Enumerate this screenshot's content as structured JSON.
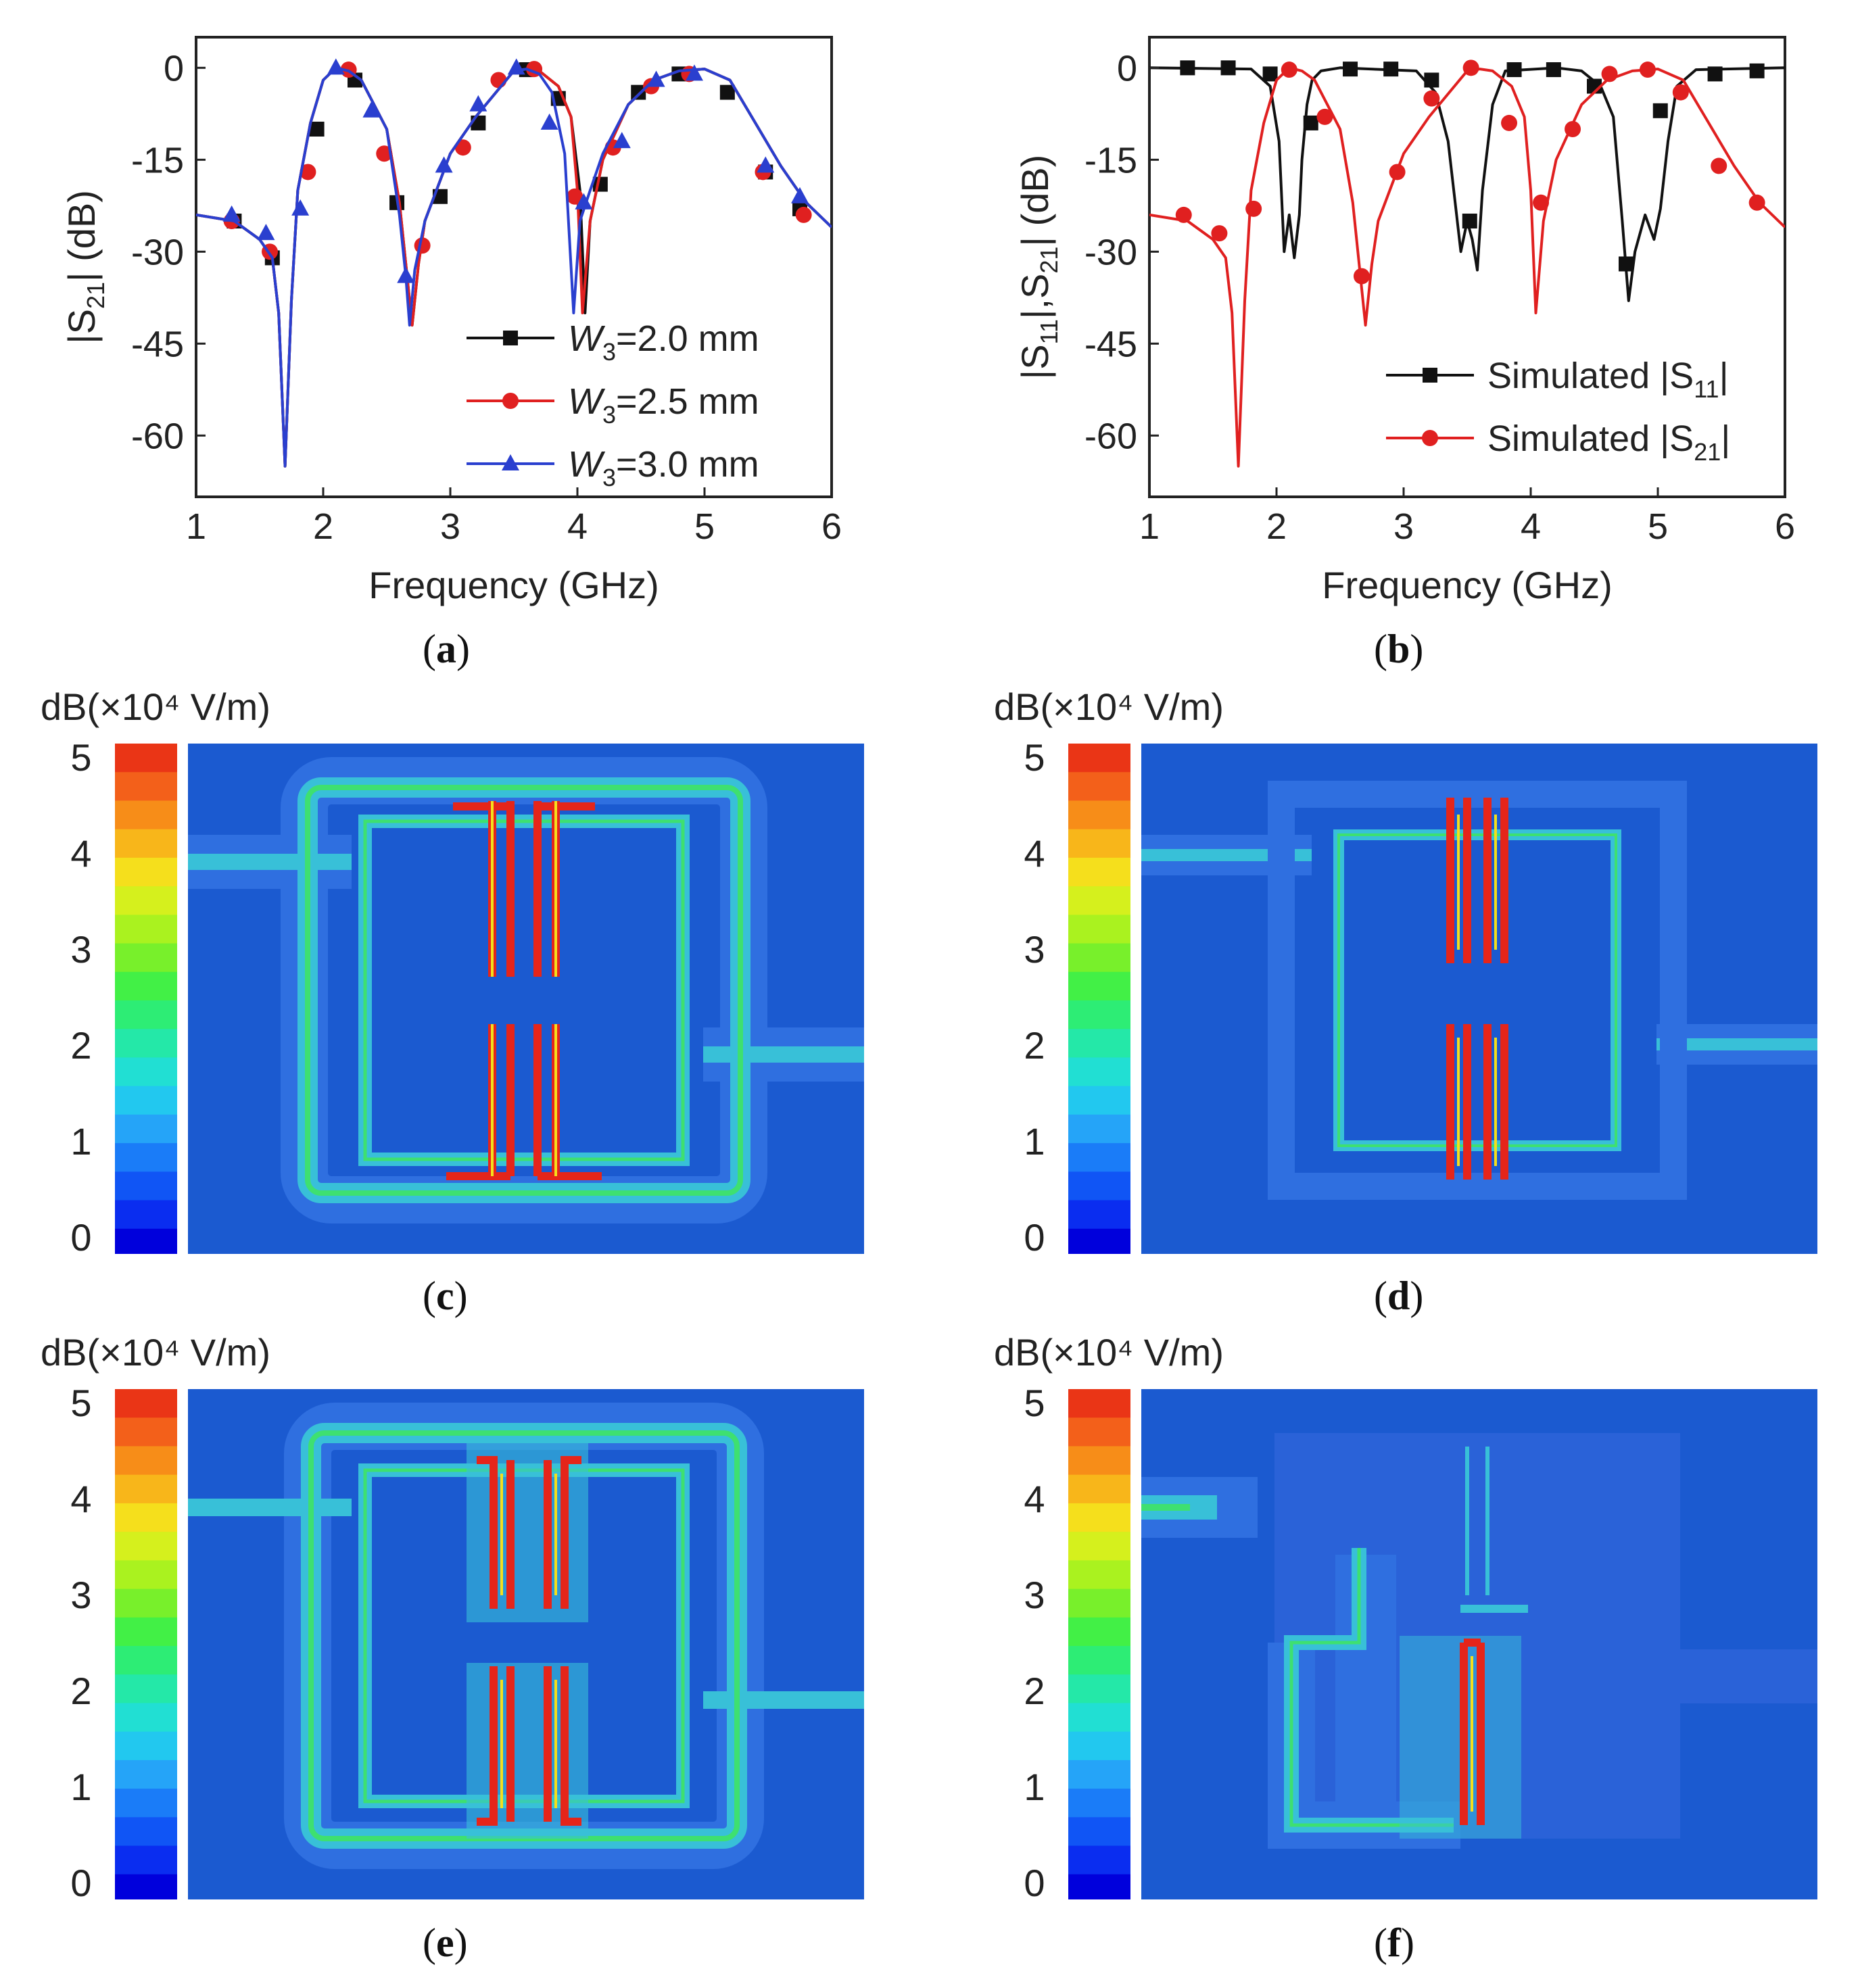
{
  "colors": {
    "black_series": "#111111",
    "red_series": "#e02020",
    "blue_series": "#2a3fcf",
    "field_bg": "#1b5ad0",
    "field_low": "#2f6fe0",
    "field_mid": "#38c0d8",
    "field_green": "#3ee070",
    "field_hot": "#e5251a"
  },
  "captions": {
    "a": "a",
    "b": "b",
    "c": "c",
    "d": "d",
    "e": "e",
    "f": "f"
  },
  "colorbar": {
    "title": "dB(×10⁴ V/m)",
    "ticks": [
      "0",
      "1",
      "2",
      "3",
      "4",
      "5"
    ],
    "colors": [
      "#0000dc",
      "#0a2df0",
      "#1055f5",
      "#1a7cf8",
      "#25a4f8",
      "#22c8ef",
      "#21dfd3",
      "#24e8a8",
      "#2ded75",
      "#42f046",
      "#78f02b",
      "#aaf21f",
      "#d5f01d",
      "#f5df1c",
      "#f8b61a",
      "#f78d18",
      "#f3601a",
      "#ea3516"
    ]
  },
  "chart_data": [
    {
      "id": "a",
      "type": "line",
      "xlabel": "Frequency (GHz)",
      "ylabel": "|S21| (dB)",
      "xlim": [
        1,
        6
      ],
      "ylim": [
        -70,
        5
      ],
      "xticks": [
        "1",
        "2",
        "3",
        "4",
        "5",
        "6"
      ],
      "yticks": [
        "0",
        "-15",
        "-30",
        "-45",
        "-60"
      ],
      "legend_position": "bottom-right",
      "series": [
        {
          "name": "W3=2.0 mm",
          "legend": [
            "W",
            "3",
            "=2.0 mm"
          ],
          "color": "#111111",
          "marker": "square",
          "x": [
            1.0,
            1.3,
            1.5,
            1.6,
            1.65,
            1.7,
            1.75,
            1.8,
            1.9,
            2.0,
            2.1,
            2.2,
            2.3,
            2.5,
            2.6,
            2.65,
            2.7,
            2.75,
            2.8,
            3.0,
            3.2,
            3.4,
            3.5,
            3.6,
            3.7,
            3.85,
            3.95,
            4.02,
            4.06,
            4.1,
            4.2,
            4.4,
            4.6,
            4.8,
            5.0,
            5.2,
            5.4,
            5.6,
            5.8,
            6.0
          ],
          "y": [
            -24,
            -25,
            -28,
            -31,
            -40,
            -65,
            -38,
            -20,
            -9,
            -2,
            0,
            -0.5,
            -2,
            -10,
            -22,
            -32,
            -42,
            -32,
            -25,
            -14,
            -8,
            -3,
            -0.5,
            -0.2,
            -0.5,
            -3,
            -8,
            -20,
            -40,
            -25,
            -15,
            -6,
            -2,
            -0.5,
            -0.2,
            -2,
            -9,
            -16,
            -22,
            -26
          ],
          "marker_x": [
            1.3,
            1.6,
            1.95,
            2.25,
            2.58,
            2.92,
            3.22,
            3.6,
            3.85,
            4.18,
            4.48,
            4.8,
            5.18,
            5.48,
            5.75
          ],
          "marker_y": [
            -25,
            -31,
            -10,
            -2,
            -22,
            -21,
            -9,
            -0.3,
            -5,
            -19,
            -4,
            -1,
            -4,
            -17,
            -23
          ]
        },
        {
          "name": "W3=2.5 mm",
          "legend": [
            "W",
            "3",
            "=2.5 mm"
          ],
          "color": "#e02020",
          "marker": "circle",
          "x": [
            1.0,
            1.3,
            1.5,
            1.6,
            1.65,
            1.7,
            1.75,
            1.8,
            1.9,
            2.0,
            2.1,
            2.2,
            2.3,
            2.5,
            2.6,
            2.65,
            2.7,
            2.75,
            2.8,
            3.0,
            3.2,
            3.4,
            3.5,
            3.6,
            3.7,
            3.85,
            3.95,
            4.0,
            4.04,
            4.1,
            4.2,
            4.4,
            4.6,
            4.8,
            5.0,
            5.2,
            5.4,
            5.6,
            5.8,
            6.0
          ],
          "y": [
            -24,
            -25,
            -28,
            -31,
            -40,
            -65,
            -38,
            -20,
            -9,
            -2,
            0,
            -0.5,
            -2,
            -10,
            -22,
            -32,
            -42,
            -32,
            -25,
            -14,
            -8,
            -3,
            -0.5,
            -0.2,
            -0.5,
            -3,
            -8,
            -20,
            -40,
            -25,
            -15,
            -6,
            -2,
            -0.5,
            -0.2,
            -2,
            -9,
            -16,
            -22,
            -26
          ],
          "marker_x": [
            1.28,
            1.58,
            1.88,
            2.2,
            2.48,
            2.78,
            3.1,
            3.38,
            3.66,
            3.98,
            4.28,
            4.58,
            4.88,
            5.46,
            5.78
          ],
          "marker_y": [
            -25,
            -30,
            -17,
            -0.3,
            -14,
            -29,
            -13,
            -2,
            -0.2,
            -21,
            -13,
            -3,
            -1,
            -17,
            -24
          ]
        },
        {
          "name": "W3=3.0 mm",
          "legend": [
            "W",
            "3",
            "=3.0 mm"
          ],
          "color": "#2a3fcf",
          "marker": "triangle",
          "x": [
            1.0,
            1.3,
            1.5,
            1.6,
            1.65,
            1.7,
            1.75,
            1.8,
            1.9,
            2.0,
            2.1,
            2.2,
            2.3,
            2.5,
            2.6,
            2.65,
            2.68,
            2.72,
            2.8,
            3.0,
            3.2,
            3.4,
            3.5,
            3.6,
            3.7,
            3.8,
            3.9,
            3.97,
            4.02,
            4.1,
            4.2,
            4.4,
            4.6,
            4.8,
            5.0,
            5.2,
            5.4,
            5.6,
            5.8,
            6.0
          ],
          "y": [
            -24,
            -25,
            -28,
            -31,
            -40,
            -65,
            -38,
            -20,
            -9,
            -2,
            0,
            -0.5,
            -2,
            -10,
            -24,
            -34,
            -42,
            -33,
            -25,
            -14,
            -8,
            -3,
            -0.5,
            -0.2,
            -1,
            -4,
            -14,
            -40,
            -25,
            -20,
            -14,
            -6,
            -2,
            -0.5,
            -0.2,
            -2,
            -9,
            -16,
            -22,
            -26
          ],
          "marker_x": [
            1.28,
            1.55,
            1.82,
            2.1,
            2.38,
            2.65,
            2.95,
            3.22,
            3.52,
            3.78,
            4.05,
            4.35,
            4.62,
            4.92,
            5.48,
            5.75
          ],
          "marker_y": [
            -24,
            -27,
            -23,
            0,
            -7,
            -34,
            -16,
            -6,
            0,
            -9,
            -22,
            -12,
            -2,
            -1,
            -16,
            -21
          ]
        }
      ]
    },
    {
      "id": "b",
      "type": "line",
      "xlabel": "Frequency (GHz)",
      "ylabel": "|S11|,|S21| (dB)",
      "xlim": [
        1,
        6
      ],
      "ylim": [
        -70,
        5
      ],
      "xticks": [
        "1",
        "2",
        "3",
        "4",
        "5",
        "6"
      ],
      "yticks": [
        "0",
        "-15",
        "-30",
        "-45",
        "-60"
      ],
      "legend_position": "bottom-right",
      "series": [
        {
          "name": "Simulated |S11|",
          "legend": [
            "Simulated |S",
            "11",
            "|"
          ],
          "color": "#111111",
          "marker": "square",
          "x": [
            1.0,
            1.8,
            1.95,
            2.02,
            2.06,
            2.1,
            2.14,
            2.18,
            2.2,
            2.24,
            2.28,
            2.35,
            2.5,
            3.1,
            3.25,
            3.35,
            3.45,
            3.5,
            3.54,
            3.58,
            3.62,
            3.7,
            3.8,
            4.2,
            4.4,
            4.55,
            4.65,
            4.72,
            4.77,
            4.82,
            4.9,
            4.97,
            5.02,
            5.08,
            5.15,
            5.3,
            6.0
          ],
          "y": [
            0,
            -0.2,
            -3,
            -12,
            -30,
            -24,
            -31,
            -24,
            -15,
            -6,
            -2,
            -0.5,
            0,
            -0.5,
            -4,
            -12,
            -30,
            -25,
            -28,
            -33,
            -20,
            -6,
            -0.5,
            0,
            -0.5,
            -3,
            -8,
            -25,
            -38,
            -30,
            -24,
            -28,
            -23,
            -12,
            -3,
            -0.3,
            0
          ],
          "marker_x": [
            1.3,
            1.62,
            1.95,
            2.27,
            2.58,
            2.9,
            3.22,
            3.52,
            3.87,
            4.18,
            4.5,
            4.75,
            5.02,
            5.45,
            5.78
          ],
          "marker_y": [
            0,
            0,
            -1,
            -9,
            -0.2,
            -0.2,
            -2,
            -25,
            -0.3,
            -0.3,
            -3,
            -32,
            -7,
            -1,
            -0.5
          ]
        },
        {
          "name": "Simulated |S21|",
          "legend": [
            "Simulated |S",
            "21",
            "|"
          ],
          "color": "#e02020",
          "marker": "circle",
          "x": [
            1.0,
            1.3,
            1.5,
            1.6,
            1.65,
            1.7,
            1.75,
            1.8,
            1.9,
            2.0,
            2.1,
            2.2,
            2.3,
            2.5,
            2.6,
            2.65,
            2.7,
            2.75,
            2.8,
            3.0,
            3.2,
            3.4,
            3.5,
            3.6,
            3.7,
            3.85,
            3.95,
            4.0,
            4.04,
            4.1,
            4.2,
            4.4,
            4.6,
            4.8,
            5.0,
            5.2,
            5.4,
            5.6,
            5.8,
            6.0
          ],
          "y": [
            -24,
            -25,
            -28,
            -31,
            -40,
            -65,
            -38,
            -20,
            -9,
            -2,
            0,
            -0.5,
            -2,
            -10,
            -22,
            -32,
            -42,
            -32,
            -25,
            -14,
            -8,
            -3,
            -0.5,
            -0.2,
            -0.5,
            -3,
            -8,
            -20,
            -40,
            -25,
            -15,
            -6,
            -2,
            -0.5,
            -0.2,
            -2,
            -9,
            -16,
            -22,
            -26
          ],
          "marker_x": [
            1.27,
            1.55,
            1.82,
            2.1,
            2.38,
            2.67,
            2.95,
            3.22,
            3.53,
            3.83,
            4.08,
            4.33,
            4.62,
            4.92,
            5.18,
            5.48,
            5.78
          ],
          "marker_y": [
            -24,
            -27,
            -23,
            -0.3,
            -8,
            -34,
            -17,
            -5,
            0,
            -9,
            -22,
            -10,
            -1,
            -0.3,
            -4,
            -16,
            -22
          ]
        }
      ]
    }
  ]
}
